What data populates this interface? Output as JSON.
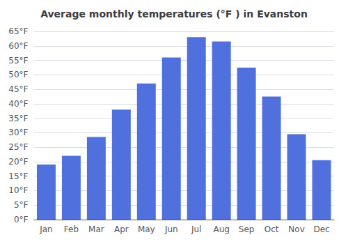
{
  "chart_data": {
    "type": "bar",
    "title": "Average monthly temperatures (°F ) in Evanston",
    "categories": [
      "Jan",
      "Feb",
      "Mar",
      "Apr",
      "May",
      "Jun",
      "Jul",
      "Aug",
      "Sep",
      "Oct",
      "Nov",
      "Dec"
    ],
    "values": [
      19,
      22,
      28.5,
      38,
      47,
      56,
      63,
      61.5,
      52.5,
      42.5,
      29.5,
      20.5
    ],
    "ylim": [
      0,
      65
    ],
    "yticks": [
      {
        "value": 0,
        "label": "0°F"
      },
      {
        "value": 5,
        "label": "5°F"
      },
      {
        "value": 10,
        "label": "10°F"
      },
      {
        "value": 15,
        "label": "15°F"
      },
      {
        "value": 20,
        "label": "20°F"
      },
      {
        "value": 25,
        "label": "25°F"
      },
      {
        "value": 30,
        "label": "30°F"
      },
      {
        "value": 35,
        "label": "35°F"
      },
      {
        "value": 40,
        "label": "40°F"
      },
      {
        "value": 45,
        "label": "45°F"
      },
      {
        "value": 50,
        "label": "50°F"
      },
      {
        "value": 55,
        "label": "55°F"
      },
      {
        "value": 60,
        "label": "60°F"
      },
      {
        "value": 65,
        "label": "65°F"
      }
    ],
    "grid": true
  }
}
